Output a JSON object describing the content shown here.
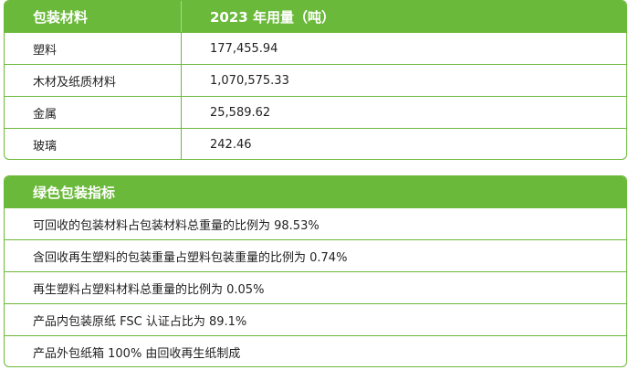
{
  "materials_table": {
    "headers": [
      "包装材料",
      "2023 年用量（吨）"
    ],
    "rows": [
      [
        "塑料",
        "177,455.94"
      ],
      [
        "木材及纸质材料",
        "1,070,575.33"
      ],
      [
        "金属",
        "25,589.62"
      ],
      [
        "玻璃",
        "242.46"
      ]
    ]
  },
  "green_table": {
    "header": "绿色包装指标",
    "items": [
      "可回收的包装材料占包装材料总重量的比例为 98.53%",
      "含回收再生塑料的包装重量占塑料包装重量的比例为 0.74%",
      "再生塑料占塑料材料总重量的比例为 0.05%",
      "产品内包装原纸 FSC 认证占比为 89.1%",
      "产品外包纸箱 100% 由回收再生纸制成"
    ]
  },
  "colors": {
    "accent_green": "#6bb93a",
    "header_text": "#ffffff"
  }
}
